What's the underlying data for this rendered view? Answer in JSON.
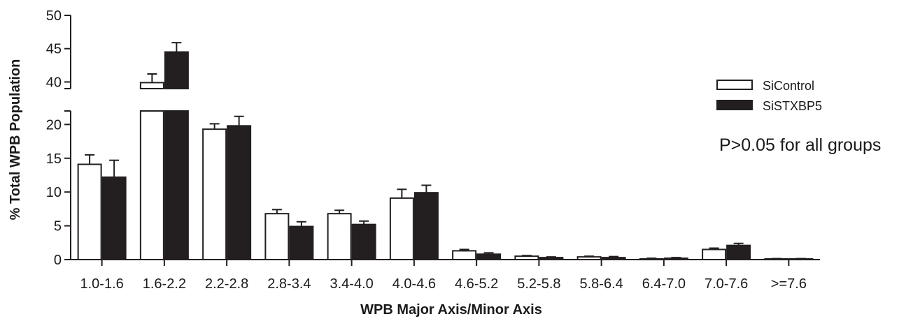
{
  "chart_data": {
    "type": "bar",
    "xlabel": "WPB Major Axis/Minor Axis",
    "ylabel": "% Total WPB Population",
    "categories": [
      "1.0-1.6",
      "1.6-2.2",
      "2.2-2.8",
      "2.8-3.4",
      "3.4-4.0",
      "4.0-4.6",
      "4.6-5.2",
      "5.2-5.8",
      "5.8-6.4",
      "6.4-7.0",
      "7.0-7.6",
      ">=7.6"
    ],
    "series": [
      {
        "name": "SiControl",
        "color": "#ffffff",
        "values": [
          14.1,
          39.9,
          19.3,
          6.8,
          6.8,
          9.1,
          1.3,
          0.5,
          0.4,
          0.1,
          1.5,
          0.1
        ],
        "errors": [
          1.4,
          1.3,
          0.8,
          0.6,
          0.5,
          1.3,
          0.2,
          0.1,
          0.1,
          0.1,
          0.2,
          0.05
        ]
      },
      {
        "name": "SiSTXBP5",
        "color": "#231f20",
        "values": [
          12.2,
          44.5,
          19.8,
          4.9,
          5.2,
          9.9,
          0.8,
          0.3,
          0.3,
          0.2,
          2.1,
          0.1
        ],
        "errors": [
          2.5,
          1.4,
          1.4,
          0.7,
          0.5,
          1.1,
          0.2,
          0.1,
          0.15,
          0.1,
          0.3,
          0.05
        ]
      }
    ],
    "yaxis": {
      "type": "broken",
      "lower_segment": [
        0,
        22
      ],
      "upper_segment": [
        39,
        50
      ],
      "lower_ticks": [
        "0",
        "5",
        "10",
        "15",
        "20"
      ],
      "upper_ticks": [
        "40",
        "45",
        "50"
      ]
    },
    "legend": {
      "position": "right",
      "entries": [
        "SiControl",
        "SiSTXBP5"
      ]
    },
    "annotation": "P>0.05 for all groups",
    "grid": false
  }
}
